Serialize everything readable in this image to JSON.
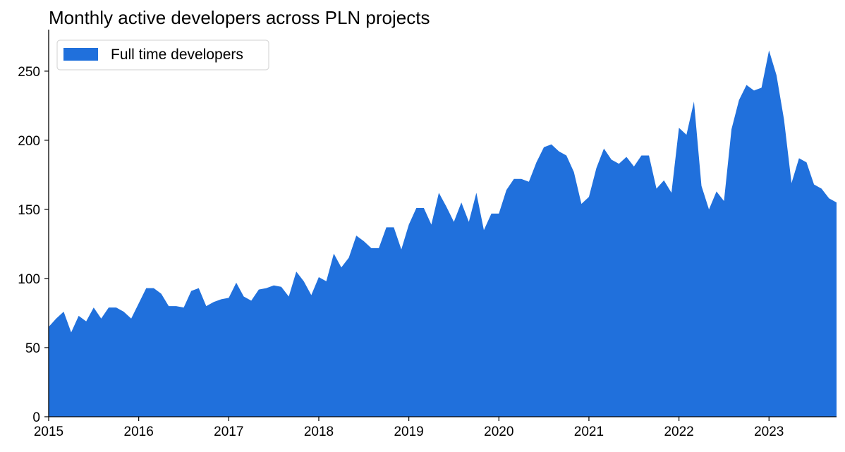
{
  "chart_data": {
    "type": "area",
    "title": "Monthly active developers across PLN projects",
    "xlabel": "",
    "ylabel": "",
    "x_start": "2015-01",
    "x_step": "month",
    "xlim": [
      "2015-01",
      "2023-10"
    ],
    "ylim": [
      0,
      278
    ],
    "x_ticks": [
      "2015",
      "2016",
      "2017",
      "2018",
      "2019",
      "2020",
      "2021",
      "2022",
      "2023"
    ],
    "y_ticks": [
      0,
      50,
      100,
      150,
      200,
      250
    ],
    "grid": false,
    "legend_position": "top-left",
    "series": [
      {
        "name": "Full time developers",
        "color": "#2070dc",
        "values": [
          65,
          71,
          76,
          61,
          73,
          69,
          79,
          71,
          79,
          79,
          76,
          71,
          82,
          93,
          93,
          89,
          80,
          80,
          79,
          91,
          93,
          80,
          83,
          85,
          86,
          97,
          87,
          84,
          92,
          93,
          95,
          94,
          87,
          105,
          98,
          88,
          101,
          98,
          118,
          108,
          115,
          131,
          127,
          122,
          122,
          137,
          137,
          121,
          139,
          151,
          151,
          139,
          162,
          152,
          141,
          155,
          141,
          162,
          135,
          147,
          147,
          164,
          172,
          172,
          170,
          184,
          195,
          197,
          192,
          189,
          177,
          154,
          159,
          180,
          194,
          186,
          183,
          188,
          181,
          189,
          189,
          165,
          171,
          162,
          209,
          204,
          228,
          167,
          150,
          163,
          156,
          208,
          229,
          240,
          236,
          238,
          265,
          247,
          215,
          169,
          187,
          184,
          168,
          165,
          158,
          155
        ]
      }
    ]
  }
}
